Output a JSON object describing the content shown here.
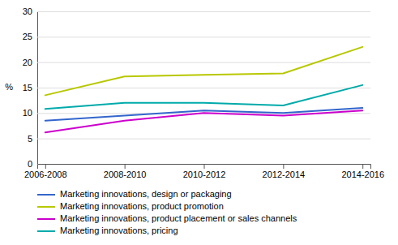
{
  "chart_data": {
    "type": "line",
    "categories": [
      "2006-2008",
      "2008-2010",
      "2010-2012",
      "2012-2014",
      "2014-2016"
    ],
    "series": [
      {
        "name": "Marketing innovations, design or packaging",
        "color": "#3366cc",
        "values": [
          8.5,
          9.5,
          10.5,
          10.0,
          11.0
        ]
      },
      {
        "name": "Marketing innovations, product promotion",
        "color": "#b8c800",
        "values": [
          13.5,
          17.2,
          17.5,
          17.8,
          23.0
        ]
      },
      {
        "name": "Marketing innovations, product placement or sales channels",
        "color": "#cc00cc",
        "values": [
          6.2,
          8.5,
          10.0,
          9.5,
          10.5
        ]
      },
      {
        "name": "Marketing innovations, pricing",
        "color": "#00aaaa",
        "values": [
          10.8,
          12.0,
          12.0,
          11.5,
          15.5
        ]
      }
    ],
    "y_label": "%",
    "ylim": [
      0,
      30
    ],
    "yticks": [
      0,
      5,
      10,
      15,
      20,
      25,
      30
    ],
    "grid": true,
    "legend": "bottom"
  }
}
